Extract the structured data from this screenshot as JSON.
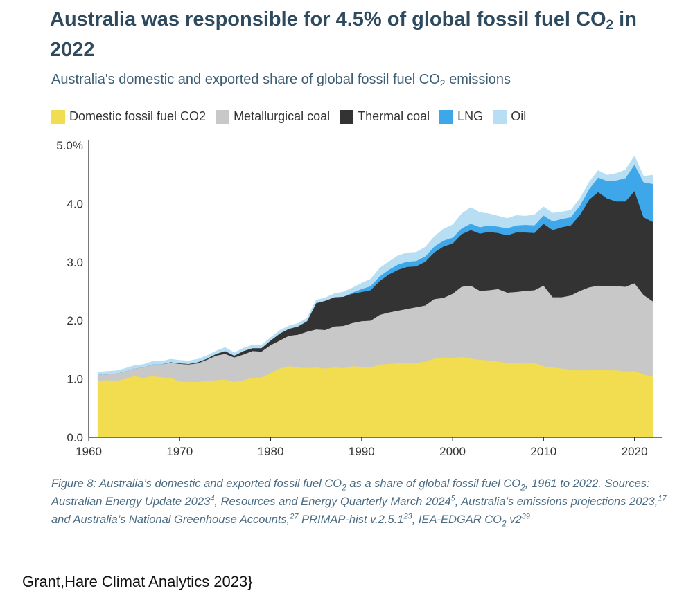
{
  "header": {
    "title_before": "Australia was responsible for 4.5% of global fossil fuel CO",
    "title_sub": "2",
    "title_after": " in 2022",
    "subtitle_before": "Australia's domestic and exported share of global fossil fuel CO",
    "subtitle_sub": "2",
    "subtitle_after": " emissions"
  },
  "caption": {
    "p1": "Figure 8: Australia’s domestic and exported fossil fuel CO",
    "s1": "2",
    "p2": " as a share of global fossil fuel CO",
    "s2": "2",
    "p3": ", 1961 to 2022. Sources: Australian Energy Update 2023",
    "r1": "4",
    "p4": ", Resources and Energy Quarterly March 2024",
    "r2": "5",
    "p5": ", Australia’s emissions projections 2023,",
    "r3": "17",
    "p6": " and Australia’s National Greenhouse Accounts,",
    "r4": "27",
    "p7": " PRIMAP-hist v.2.5.1",
    "r5": "23",
    "p8": ", IEA-EDGAR CO",
    "s3": "2",
    "p9": " v2",
    "r6": "39"
  },
  "credit": "Grant,Hare Climat Analytics 2023}",
  "chart_data": {
    "type": "area",
    "stacked": true,
    "title": "Australia was responsible for 4.5% of global fossil fuel CO2 in 2022",
    "subtitle": "Australia's domestic and exported share of global fossil fuel CO2 emissions",
    "xlabel": "",
    "ylabel": "",
    "xlim": [
      1961,
      2022
    ],
    "ylim": [
      0,
      5
    ],
    "x_ticks": [
      1960,
      1970,
      1980,
      1990,
      2000,
      2010,
      2020
    ],
    "y_ticks": [
      0,
      1,
      2,
      3,
      4,
      5
    ],
    "y_tick_labels": [
      "0.0",
      "1.0",
      "2.0",
      "3.0",
      "4.0",
      "5.0%"
    ],
    "grid": false,
    "legend_position": "top",
    "x": [
      1961,
      1962,
      1963,
      1964,
      1965,
      1966,
      1967,
      1968,
      1969,
      1970,
      1971,
      1972,
      1973,
      1974,
      1975,
      1976,
      1977,
      1978,
      1979,
      1980,
      1981,
      1982,
      1983,
      1984,
      1985,
      1986,
      1987,
      1988,
      1989,
      1990,
      1991,
      1992,
      1993,
      1994,
      1995,
      1996,
      1997,
      1998,
      1999,
      2000,
      2001,
      2002,
      2003,
      2004,
      2005,
      2006,
      2007,
      2008,
      2009,
      2010,
      2011,
      2012,
      2013,
      2014,
      2015,
      2016,
      2017,
      2018,
      2019,
      2020,
      2021,
      2022
    ],
    "series": [
      {
        "name": "Domestic fossil fuel CO2",
        "color": "#f2dc50",
        "values": [
          0.97,
          0.98,
          0.97,
          1.0,
          1.05,
          1.02,
          1.05,
          1.03,
          1.02,
          0.96,
          0.95,
          0.95,
          0.97,
          0.98,
          0.99,
          0.95,
          0.98,
          1.02,
          1.03,
          1.1,
          1.18,
          1.22,
          1.2,
          1.19,
          1.2,
          1.18,
          1.2,
          1.19,
          1.22,
          1.21,
          1.2,
          1.25,
          1.26,
          1.27,
          1.28,
          1.28,
          1.3,
          1.35,
          1.37,
          1.36,
          1.38,
          1.35,
          1.33,
          1.32,
          1.3,
          1.28,
          1.27,
          1.27,
          1.28,
          1.22,
          1.2,
          1.18,
          1.16,
          1.15,
          1.15,
          1.16,
          1.15,
          1.15,
          1.13,
          1.14,
          1.08,
          1.04
        ]
      },
      {
        "name": "Metallurgical coal",
        "color": "#c8c8c8",
        "values": [
          0.1,
          0.1,
          0.12,
          0.13,
          0.13,
          0.18,
          0.2,
          0.22,
          0.26,
          0.3,
          0.3,
          0.32,
          0.36,
          0.42,
          0.44,
          0.42,
          0.44,
          0.46,
          0.44,
          0.48,
          0.48,
          0.52,
          0.56,
          0.62,
          0.65,
          0.66,
          0.7,
          0.72,
          0.74,
          0.78,
          0.8,
          0.85,
          0.88,
          0.9,
          0.92,
          0.95,
          0.96,
          1.02,
          1.02,
          1.1,
          1.2,
          1.25,
          1.18,
          1.2,
          1.24,
          1.2,
          1.22,
          1.24,
          1.24,
          1.38,
          1.2,
          1.22,
          1.27,
          1.36,
          1.42,
          1.44,
          1.44,
          1.44,
          1.45,
          1.5,
          1.36,
          1.29
        ]
      },
      {
        "name": "Thermal coal",
        "color": "#333333",
        "values": [
          0.0,
          0.0,
          0.0,
          0.0,
          0.0,
          0.0,
          0.0,
          0.0,
          0.01,
          0.01,
          0.01,
          0.02,
          0.02,
          0.03,
          0.05,
          0.03,
          0.06,
          0.05,
          0.06,
          0.08,
          0.12,
          0.12,
          0.14,
          0.18,
          0.45,
          0.5,
          0.5,
          0.5,
          0.5,
          0.5,
          0.52,
          0.58,
          0.65,
          0.7,
          0.72,
          0.7,
          0.75,
          0.8,
          0.88,
          0.86,
          0.9,
          0.95,
          0.98,
          1.0,
          0.96,
          0.98,
          1.02,
          1.0,
          0.98,
          1.06,
          1.15,
          1.2,
          1.2,
          1.3,
          1.5,
          1.6,
          1.5,
          1.45,
          1.46,
          1.58,
          1.33,
          1.36
        ]
      },
      {
        "name": "LNG",
        "color": "#3ea7ea",
        "values": [
          0.0,
          0.0,
          0.0,
          0.0,
          0.0,
          0.0,
          0.0,
          0.0,
          0.0,
          0.0,
          0.0,
          0.0,
          0.0,
          0.0,
          0.0,
          0.0,
          0.0,
          0.0,
          0.0,
          0.0,
          0.0,
          0.0,
          0.0,
          0.0,
          0.0,
          0.0,
          0.0,
          0.0,
          0.02,
          0.05,
          0.07,
          0.08,
          0.08,
          0.09,
          0.09,
          0.09,
          0.09,
          0.1,
          0.1,
          0.1,
          0.1,
          0.11,
          0.11,
          0.11,
          0.11,
          0.12,
          0.12,
          0.13,
          0.13,
          0.14,
          0.15,
          0.14,
          0.14,
          0.16,
          0.18,
          0.25,
          0.3,
          0.36,
          0.4,
          0.45,
          0.6,
          0.65
        ]
      },
      {
        "name": "Oil",
        "color": "#b7def2",
        "values": [
          0.05,
          0.05,
          0.05,
          0.05,
          0.05,
          0.05,
          0.05,
          0.05,
          0.05,
          0.05,
          0.05,
          0.05,
          0.05,
          0.05,
          0.06,
          0.05,
          0.05,
          0.05,
          0.05,
          0.05,
          0.05,
          0.05,
          0.05,
          0.05,
          0.05,
          0.05,
          0.06,
          0.08,
          0.08,
          0.1,
          0.12,
          0.14,
          0.14,
          0.15,
          0.15,
          0.15,
          0.16,
          0.17,
          0.2,
          0.22,
          0.25,
          0.28,
          0.25,
          0.2,
          0.18,
          0.17,
          0.17,
          0.15,
          0.18,
          0.15,
          0.14,
          0.12,
          0.12,
          0.12,
          0.12,
          0.12,
          0.1,
          0.12,
          0.14,
          0.15,
          0.1,
          0.15
        ]
      }
    ]
  }
}
